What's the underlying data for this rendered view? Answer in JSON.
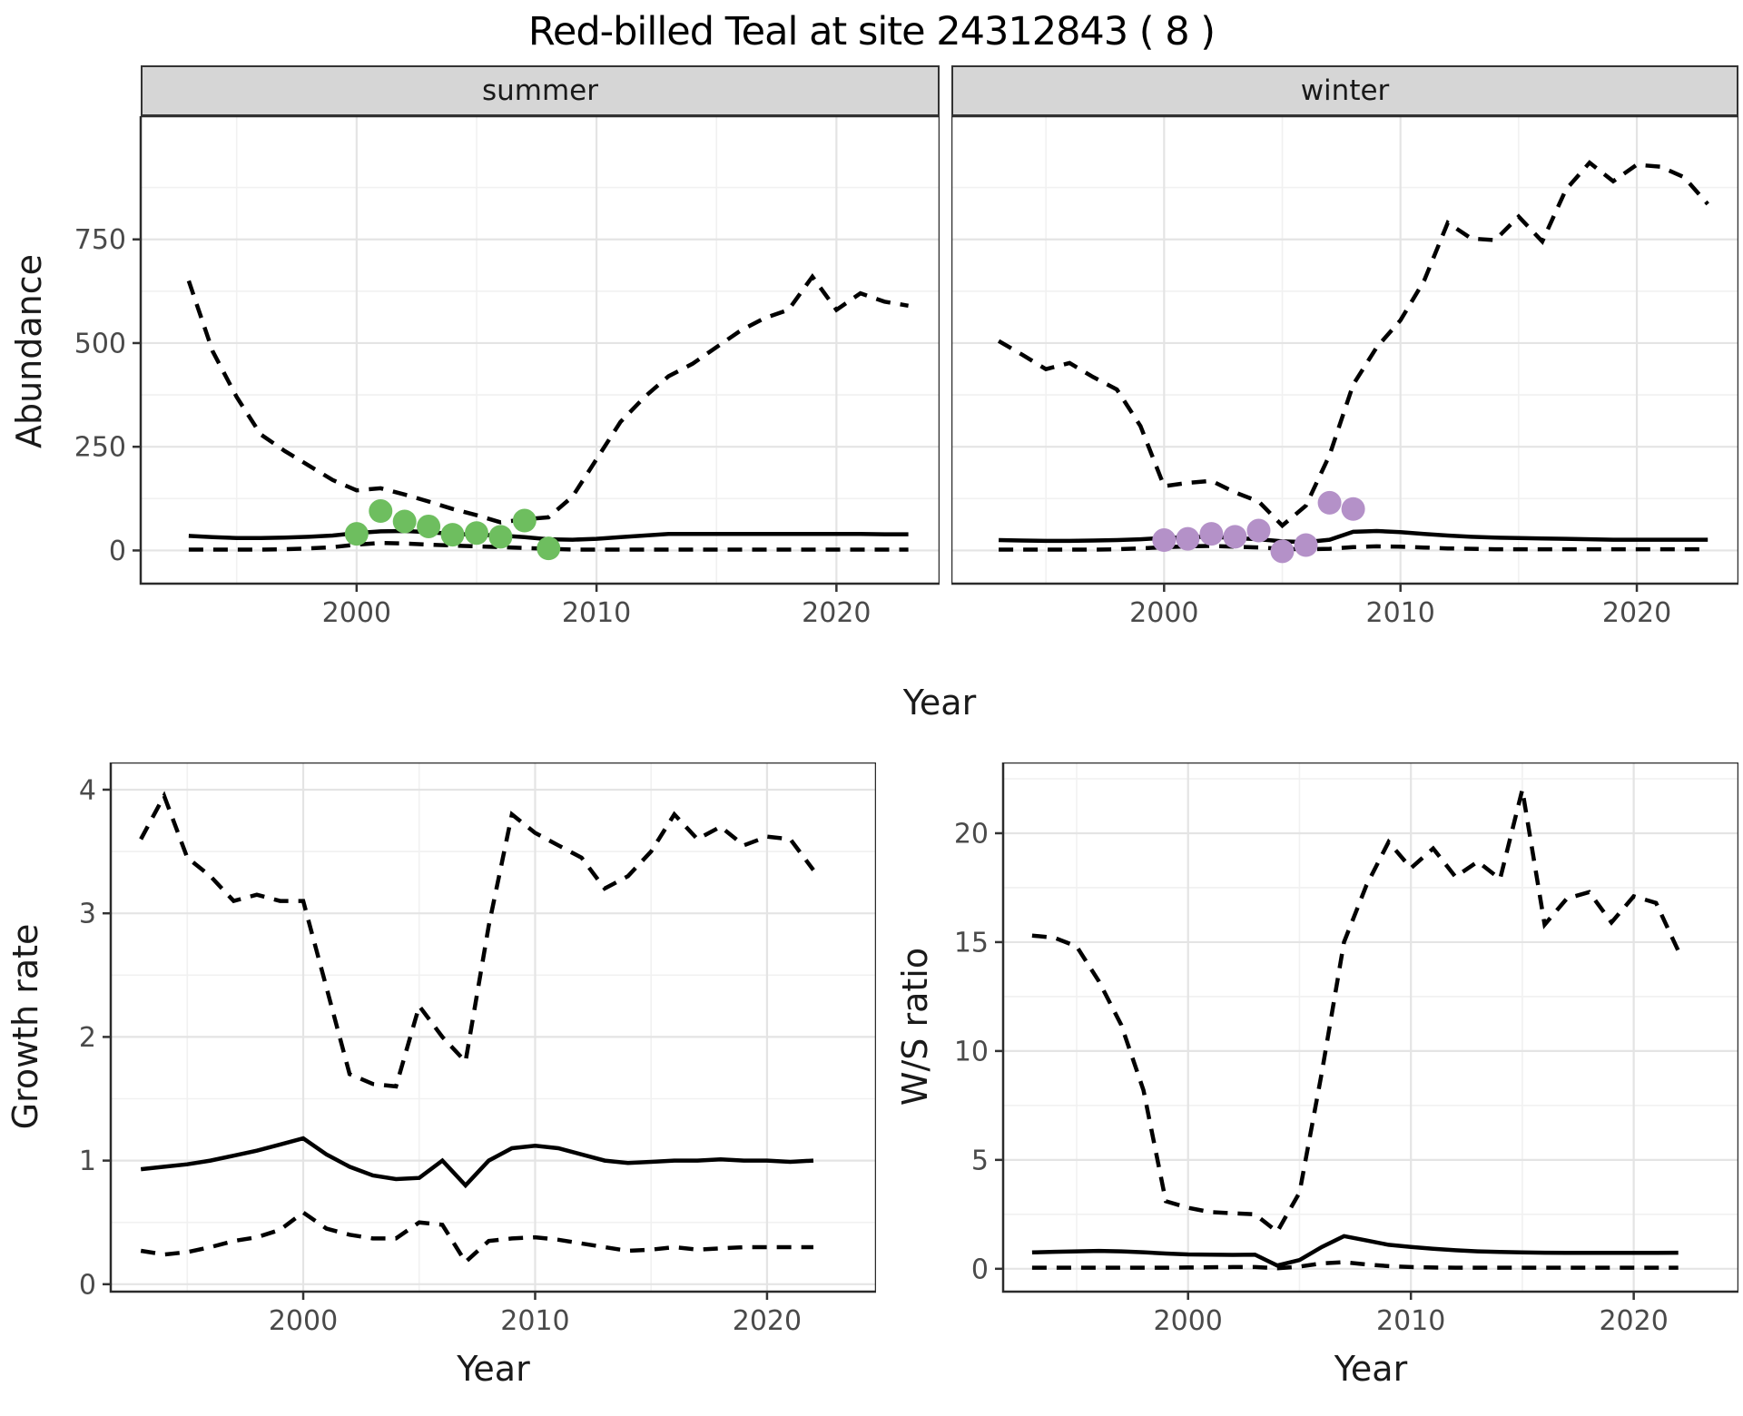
{
  "title": "Red-billed Teal at site 24312843 ( 8 )",
  "facets": {
    "summer_label": "summer",
    "winter_label": "winter"
  },
  "axes": {
    "top_ylab": "Abundance",
    "top_xlab": "Year",
    "growth_ylab": "Growth rate",
    "growth_xlab": "Year",
    "ws_ylab": "W/S ratio",
    "ws_xlab": "Year"
  },
  "colors": {
    "point_summer": "#6EBE5F",
    "point_winter": "#B491C8",
    "series_line": "#000000",
    "grid_major": "#E4E4E4",
    "grid_minor": "#F1F1F1",
    "strip_bg": "#D6D6D6",
    "panel_border": "#2B2B2B",
    "tick_label": "#4A4A4A",
    "axis_title": "#1A1A1A"
  },
  "chart_data": [
    {
      "name": "abundance_summer",
      "type": "line",
      "facet_label": "summer",
      "xlabel": "Year",
      "ylabel": "Abundance",
      "grid": true,
      "legend": "none",
      "xlim": [
        1991.0,
        2024.3
      ],
      "ylim": [
        -80,
        1047
      ],
      "xticks": [
        2000,
        2010,
        2020
      ],
      "yticks": [
        0,
        250,
        500,
        750
      ],
      "xminor": [
        1995,
        2005,
        2015
      ],
      "yminor": [
        125,
        375,
        625,
        875
      ],
      "x": [
        1993,
        1994,
        1995,
        1996,
        1997,
        1998,
        1999,
        2000,
        2001,
        2002,
        2003,
        2004,
        2005,
        2006,
        2007,
        2008,
        2009,
        2010,
        2011,
        2012,
        2013,
        2014,
        2015,
        2016,
        2017,
        2018,
        2019,
        2020,
        2021,
        2022,
        2023
      ],
      "series": [
        {
          "name": "upper_95",
          "style": "dashed",
          "values": [
            650,
            480,
            370,
            280,
            240,
            205,
            170,
            145,
            150,
            135,
            118,
            100,
            85,
            68,
            75,
            80,
            130,
            220,
            310,
            370,
            420,
            450,
            490,
            530,
            560,
            580,
            660,
            580,
            620,
            600,
            590
          ]
        },
        {
          "name": "median",
          "style": "solid",
          "values": [
            35,
            32,
            30,
            30,
            31,
            33,
            36,
            42,
            46,
            47,
            44,
            40,
            38,
            36,
            32,
            27,
            26,
            28,
            32,
            36,
            40,
            40,
            40,
            40,
            40,
            40,
            40,
            40,
            40,
            39,
            39
          ]
        },
        {
          "name": "lower_95",
          "style": "dashed",
          "values": [
            2,
            2,
            2,
            2,
            3,
            5,
            8,
            14,
            18,
            17,
            14,
            12,
            10,
            8,
            6,
            4,
            2,
            2,
            2,
            2,
            2,
            2,
            2,
            2,
            2,
            2,
            2,
            2,
            2,
            2,
            2
          ]
        }
      ],
      "points": {
        "name": "observed_counts",
        "color_key": "point_summer",
        "x": [
          2000,
          2001,
          2002,
          2003,
          2004,
          2005,
          2006,
          2007,
          2008
        ],
        "y": [
          40,
          95,
          70,
          58,
          38,
          42,
          33,
          72,
          5
        ]
      }
    },
    {
      "name": "abundance_winter",
      "type": "line",
      "facet_label": "winter",
      "xlabel": "Year",
      "ylabel": "Abundance",
      "grid": true,
      "legend": "none",
      "xlim": [
        1991.0,
        2024.3
      ],
      "ylim": [
        -80,
        1047
      ],
      "xticks": [
        2000,
        2010,
        2020
      ],
      "yticks": [
        0,
        250,
        500,
        750
      ],
      "xminor": [
        1995,
        2005,
        2015
      ],
      "yminor": [
        125,
        375,
        625,
        875
      ],
      "x": [
        1993,
        1994,
        1995,
        1996,
        1997,
        1998,
        1999,
        2000,
        2001,
        2002,
        2003,
        2004,
        2005,
        2006,
        2007,
        2008,
        2009,
        2010,
        2011,
        2012,
        2013,
        2014,
        2015,
        2016,
        2017,
        2018,
        2019,
        2020,
        2021,
        2022,
        2023
      ],
      "series": [
        {
          "name": "upper_95",
          "style": "dashed",
          "values": [
            505,
            472,
            437,
            452,
            418,
            388,
            300,
            155,
            163,
            168,
            140,
            118,
            60,
            108,
            230,
            400,
            490,
            555,
            650,
            790,
            752,
            748,
            805,
            745,
            870,
            935,
            890,
            930,
            925,
            900,
            835
          ]
        },
        {
          "name": "median",
          "style": "solid",
          "values": [
            25,
            24,
            23,
            23,
            24,
            25,
            27,
            30,
            32,
            33,
            30,
            27,
            22,
            20,
            26,
            45,
            47,
            44,
            40,
            36,
            33,
            31,
            30,
            29,
            28,
            27,
            26,
            26,
            26,
            26,
            26
          ]
        },
        {
          "name": "lower_95",
          "style": "dashed",
          "values": [
            2,
            2,
            2,
            2,
            2,
            3,
            5,
            8,
            10,
            11,
            9,
            7,
            4,
            3,
            4,
            8,
            10,
            9,
            7,
            5,
            4,
            3,
            3,
            3,
            3,
            3,
            3,
            3,
            3,
            3,
            3
          ]
        }
      ],
      "points": {
        "name": "observed_counts",
        "color_key": "point_winter",
        "x": [
          2000,
          2001,
          2002,
          2003,
          2004,
          2005,
          2006,
          2007,
          2008
        ],
        "y": [
          25,
          28,
          40,
          33,
          48,
          -2,
          13,
          115,
          100
        ]
      }
    },
    {
      "name": "growth_rate",
      "type": "line",
      "xlabel": "Year",
      "ylabel": "Growth rate",
      "grid": true,
      "legend": "none",
      "xlim": [
        1991.7,
        2024.7
      ],
      "ylim": [
        -0.06,
        4.22
      ],
      "xticks": [
        2000,
        2010,
        2020
      ],
      "yticks": [
        0,
        1,
        2,
        3,
        4
      ],
      "xminor": [
        1995,
        2005,
        2015
      ],
      "yminor": [
        0.5,
        1.5,
        2.5,
        3.5
      ],
      "x": [
        1993,
        1994,
        1995,
        1996,
        1997,
        1998,
        1999,
        2000,
        2001,
        2002,
        2003,
        2004,
        2005,
        2006,
        2007,
        2008,
        2009,
        2010,
        2011,
        2012,
        2013,
        2014,
        2015,
        2016,
        2017,
        2018,
        2019,
        2020,
        2021,
        2022
      ],
      "series": [
        {
          "name": "upper_95",
          "style": "dashed",
          "values": [
            3.6,
            3.95,
            3.45,
            3.3,
            3.1,
            3.15,
            3.1,
            3.1,
            2.4,
            1.7,
            1.62,
            1.6,
            2.25,
            2.0,
            1.8,
            2.9,
            3.8,
            3.65,
            3.55,
            3.45,
            3.2,
            3.3,
            3.5,
            3.8,
            3.6,
            3.7,
            3.55,
            3.62,
            3.6,
            3.35
          ]
        },
        {
          "name": "median",
          "style": "solid",
          "values": [
            0.93,
            0.95,
            0.97,
            1.0,
            1.04,
            1.08,
            1.13,
            1.18,
            1.05,
            0.95,
            0.88,
            0.85,
            0.86,
            1.0,
            0.8,
            1.0,
            1.1,
            1.12,
            1.1,
            1.05,
            1.0,
            0.98,
            0.99,
            1.0,
            1.0,
            1.01,
            1.0,
            1.0,
            0.99,
            1.0
          ]
        },
        {
          "name": "lower_95",
          "style": "dashed",
          "values": [
            0.27,
            0.24,
            0.26,
            0.3,
            0.35,
            0.38,
            0.44,
            0.58,
            0.45,
            0.4,
            0.37,
            0.37,
            0.5,
            0.48,
            0.18,
            0.35,
            0.37,
            0.38,
            0.36,
            0.33,
            0.3,
            0.27,
            0.28,
            0.3,
            0.28,
            0.29,
            0.3,
            0.3,
            0.3,
            0.3
          ]
        }
      ]
    },
    {
      "name": "ws_ratio",
      "type": "line",
      "xlabel": "Year",
      "ylabel": "W/S ratio",
      "grid": true,
      "legend": "none",
      "xlim": [
        1991.7,
        2024.7
      ],
      "ylim": [
        -1.05,
        23.25
      ],
      "xticks": [
        2000,
        2010,
        2020
      ],
      "yticks": [
        0,
        5,
        10,
        15,
        20
      ],
      "xminor": [
        1995,
        2005,
        2015
      ],
      "yminor": [
        2.5,
        7.5,
        12.5,
        17.5,
        22.5
      ],
      "x": [
        1993,
        1994,
        1995,
        1996,
        1997,
        1998,
        1999,
        2000,
        2001,
        2002,
        2003,
        2004,
        2005,
        2006,
        2007,
        2008,
        2009,
        2010,
        2011,
        2012,
        2013,
        2014,
        2015,
        2016,
        2017,
        2018,
        2019,
        2020,
        2021,
        2022
      ],
      "series": [
        {
          "name": "upper_95",
          "style": "dashed",
          "values": [
            15.3,
            15.2,
            14.8,
            13.2,
            11.2,
            8.2,
            3.1,
            2.8,
            2.6,
            2.55,
            2.5,
            1.7,
            3.5,
            9.0,
            15.0,
            17.6,
            19.6,
            18.4,
            19.3,
            18.0,
            18.7,
            17.9,
            22.0,
            15.8,
            17.0,
            17.3,
            15.9,
            17.1,
            16.8,
            14.6
          ]
        },
        {
          "name": "median",
          "style": "solid",
          "values": [
            0.75,
            0.78,
            0.8,
            0.82,
            0.8,
            0.76,
            0.7,
            0.66,
            0.65,
            0.64,
            0.65,
            0.15,
            0.4,
            1.0,
            1.5,
            1.3,
            1.1,
            1.0,
            0.92,
            0.85,
            0.8,
            0.77,
            0.75,
            0.74,
            0.73,
            0.73,
            0.73,
            0.73,
            0.73,
            0.74
          ]
        },
        {
          "name": "lower_95",
          "style": "dashed",
          "values": [
            0.05,
            0.05,
            0.05,
            0.05,
            0.05,
            0.05,
            0.05,
            0.06,
            0.07,
            0.08,
            0.08,
            0.02,
            0.1,
            0.25,
            0.3,
            0.2,
            0.12,
            0.08,
            0.06,
            0.05,
            0.05,
            0.05,
            0.05,
            0.05,
            0.05,
            0.05,
            0.05,
            0.05,
            0.05,
            0.05
          ]
        }
      ]
    }
  ]
}
